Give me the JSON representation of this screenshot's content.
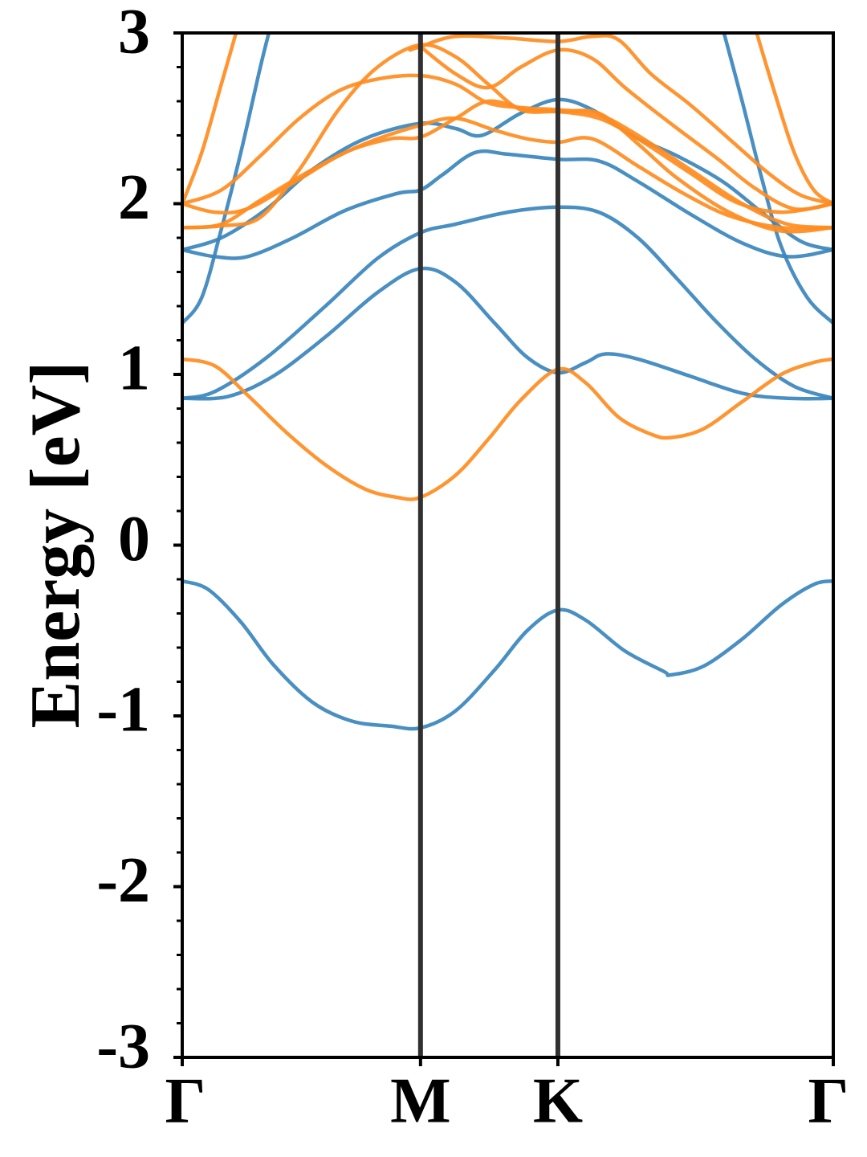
{
  "chart_data": {
    "type": "line",
    "title": "",
    "xlabel": "",
    "ylabel": "Energy [eV]",
    "ylim": [
      -3,
      3
    ],
    "x_ticks": [
      {
        "label": "Γ",
        "k": 0.0
      },
      {
        "label": "M",
        "k": 0.366
      },
      {
        "label": "K",
        "k": 0.577
      },
      {
        "label": "Γ",
        "k": 1.0
      }
    ],
    "y_ticks": [
      {
        "label": "-3",
        "value": -3
      },
      {
        "label": "-2",
        "value": -2
      },
      {
        "label": "-1",
        "value": -1
      },
      {
        "label": "0",
        "value": 0
      },
      {
        "label": "1",
        "value": 1
      },
      {
        "label": "2",
        "value": 2
      },
      {
        "label": "3",
        "value": 3
      }
    ],
    "y_minor_step": 0.2,
    "vlines_k": [
      0.366,
      0.577
    ],
    "colors": {
      "blue": "#3a86bd",
      "orange": "#ff8c1f",
      "vline": "#303030",
      "axis": "#000000"
    },
    "series": [
      {
        "name": "blue-band-1",
        "color": "blue",
        "points": [
          [
            0,
            -0.21
          ],
          [
            0.04,
            -0.26
          ],
          [
            0.09,
            -0.45
          ],
          [
            0.14,
            -0.7
          ],
          [
            0.2,
            -0.92
          ],
          [
            0.26,
            -1.03
          ],
          [
            0.32,
            -1.06
          ],
          [
            0.366,
            -1.07
          ],
          [
            0.42,
            -0.97
          ],
          [
            0.48,
            -0.73
          ],
          [
            0.53,
            -0.5
          ],
          [
            0.577,
            -0.38
          ],
          [
            0.62,
            -0.44
          ],
          [
            0.68,
            -0.62
          ],
          [
            0.74,
            -0.74
          ],
          [
            0.75,
            -0.76
          ],
          [
            0.8,
            -0.71
          ],
          [
            0.86,
            -0.55
          ],
          [
            0.92,
            -0.35
          ],
          [
            0.97,
            -0.23
          ],
          [
            1.0,
            -0.21
          ]
        ]
      },
      {
        "name": "blue-band-2",
        "color": "blue",
        "points": [
          [
            0,
            0.86
          ],
          [
            0.07,
            0.87
          ],
          [
            0.14,
            0.99
          ],
          [
            0.22,
            1.22
          ],
          [
            0.3,
            1.48
          ],
          [
            0.366,
            1.62
          ],
          [
            0.42,
            1.54
          ],
          [
            0.48,
            1.3
          ],
          [
            0.53,
            1.1
          ],
          [
            0.577,
            1.01
          ],
          [
            0.62,
            1.07
          ],
          [
            0.65,
            1.12
          ],
          [
            0.7,
            1.09
          ],
          [
            0.78,
            0.99
          ],
          [
            0.86,
            0.89
          ],
          [
            0.93,
            0.86
          ],
          [
            1.0,
            0.86
          ]
        ]
      },
      {
        "name": "blue-band-3",
        "color": "blue",
        "points": [
          [
            0,
            0.86
          ],
          [
            0.05,
            0.9
          ],
          [
            0.13,
            1.1
          ],
          [
            0.22,
            1.4
          ],
          [
            0.3,
            1.68
          ],
          [
            0.366,
            1.83
          ],
          [
            0.42,
            1.88
          ],
          [
            0.5,
            1.95
          ],
          [
            0.577,
            1.98
          ],
          [
            0.64,
            1.95
          ],
          [
            0.7,
            1.8
          ],
          [
            0.76,
            1.56
          ],
          [
            0.82,
            1.31
          ],
          [
            0.88,
            1.09
          ],
          [
            0.94,
            0.93
          ],
          [
            1.0,
            0.86
          ]
        ]
      },
      {
        "name": "blue-band-4",
        "color": "blue",
        "points": [
          [
            0,
            1.73
          ],
          [
            0.05,
            1.69
          ],
          [
            0.1,
            1.69
          ],
          [
            0.17,
            1.8
          ],
          [
            0.25,
            1.96
          ],
          [
            0.33,
            2.06
          ],
          [
            0.366,
            2.08
          ],
          [
            0.4,
            2.17
          ],
          [
            0.45,
            2.3
          ],
          [
            0.5,
            2.29
          ],
          [
            0.577,
            2.26
          ],
          [
            0.64,
            2.25
          ],
          [
            0.7,
            2.13
          ],
          [
            0.78,
            1.94
          ],
          [
            0.86,
            1.77
          ],
          [
            0.93,
            1.69
          ],
          [
            1.0,
            1.73
          ]
        ]
      },
      {
        "name": "blue-band-5",
        "color": "blue",
        "points": [
          [
            0,
            1.73
          ],
          [
            0.06,
            1.8
          ],
          [
            0.13,
            1.97
          ],
          [
            0.2,
            2.2
          ],
          [
            0.28,
            2.38
          ],
          [
            0.366,
            2.47
          ],
          [
            0.42,
            2.44
          ],
          [
            0.46,
            2.4
          ],
          [
            0.52,
            2.53
          ],
          [
            0.577,
            2.61
          ],
          [
            0.63,
            2.55
          ],
          [
            0.69,
            2.4
          ],
          [
            0.76,
            2.28
          ],
          [
            0.83,
            2.13
          ],
          [
            0.89,
            1.95
          ],
          [
            0.95,
            1.78
          ],
          [
            1.0,
            1.73
          ]
        ]
      },
      {
        "name": "blue-band-6",
        "color": "blue",
        "points": [
          [
            0,
            1.3
          ],
          [
            0.03,
            1.45
          ],
          [
            0.06,
            1.85
          ],
          [
            0.09,
            2.3
          ],
          [
            0.12,
            2.8
          ],
          [
            0.135,
            3.03
          ]
        ]
      },
      {
        "name": "blue-band-7",
        "color": "blue",
        "points": [
          [
            0.83,
            3.03
          ],
          [
            0.86,
            2.6
          ],
          [
            0.89,
            2.15
          ],
          [
            0.92,
            1.75
          ],
          [
            0.96,
            1.45
          ],
          [
            1.0,
            1.3
          ]
        ]
      },
      {
        "name": "orange-band-1",
        "color": "orange",
        "points": [
          [
            0,
            1.09
          ],
          [
            0.05,
            1.05
          ],
          [
            0.1,
            0.88
          ],
          [
            0.16,
            0.66
          ],
          [
            0.22,
            0.47
          ],
          [
            0.28,
            0.33
          ],
          [
            0.33,
            0.28
          ],
          [
            0.366,
            0.28
          ],
          [
            0.42,
            0.41
          ],
          [
            0.47,
            0.62
          ],
          [
            0.52,
            0.85
          ],
          [
            0.577,
            1.03
          ],
          [
            0.62,
            0.95
          ],
          [
            0.67,
            0.75
          ],
          [
            0.72,
            0.65
          ],
          [
            0.75,
            0.63
          ],
          [
            0.8,
            0.68
          ],
          [
            0.86,
            0.84
          ],
          [
            0.92,
            1.0
          ],
          [
            0.97,
            1.07
          ],
          [
            1.0,
            1.09
          ]
        ]
      },
      {
        "name": "orange-band-2",
        "color": "orange",
        "points": [
          [
            0,
            2.0
          ],
          [
            0.05,
            1.95
          ],
          [
            0.1,
            1.97
          ],
          [
            0.17,
            2.12
          ],
          [
            0.25,
            2.3
          ],
          [
            0.32,
            2.38
          ],
          [
            0.366,
            2.39
          ],
          [
            0.42,
            2.5
          ],
          [
            0.47,
            2.6
          ],
          [
            0.53,
            2.55
          ],
          [
            0.577,
            2.54
          ],
          [
            0.64,
            2.5
          ],
          [
            0.7,
            2.38
          ],
          [
            0.78,
            2.18
          ],
          [
            0.85,
            2.01
          ],
          [
            0.92,
            1.95
          ],
          [
            1.0,
            2.0
          ]
        ]
      },
      {
        "name": "orange-band-3",
        "color": "orange",
        "points": [
          [
            0,
            1.86
          ],
          [
            0.06,
            1.88
          ],
          [
            0.12,
            2.02
          ],
          [
            0.2,
            2.2
          ],
          [
            0.28,
            2.35
          ],
          [
            0.366,
            2.46
          ],
          [
            0.42,
            2.5
          ],
          [
            0.48,
            2.43
          ],
          [
            0.53,
            2.38
          ],
          [
            0.577,
            2.36
          ],
          [
            0.63,
            2.38
          ],
          [
            0.7,
            2.22
          ],
          [
            0.77,
            2.06
          ],
          [
            0.84,
            1.93
          ],
          [
            0.92,
            1.86
          ],
          [
            1.0,
            1.86
          ]
        ]
      },
      {
        "name": "orange-band-4",
        "color": "orange",
        "points": [
          [
            0,
            2.0
          ],
          [
            0.06,
            2.08
          ],
          [
            0.12,
            2.28
          ],
          [
            0.18,
            2.5
          ],
          [
            0.24,
            2.66
          ],
          [
            0.3,
            2.73
          ],
          [
            0.366,
            2.75
          ],
          [
            0.42,
            2.7
          ],
          [
            0.47,
            2.59
          ],
          [
            0.53,
            2.56
          ],
          [
            0.577,
            2.55
          ],
          [
            0.64,
            2.52
          ],
          [
            0.7,
            2.4
          ],
          [
            0.78,
            2.2
          ],
          [
            0.86,
            2.0
          ],
          [
            0.93,
            1.88
          ],
          [
            1.0,
            1.86
          ]
        ]
      },
      {
        "name": "orange-band-5",
        "color": "orange",
        "points": [
          [
            0,
            1.86
          ],
          [
            0.06,
            1.87
          ],
          [
            0.12,
            1.92
          ],
          [
            0.18,
            2.2
          ],
          [
            0.24,
            2.55
          ],
          [
            0.3,
            2.8
          ],
          [
            0.366,
            2.93
          ],
          [
            0.42,
            2.86
          ],
          [
            0.47,
            2.7
          ],
          [
            0.52,
            2.55
          ],
          [
            0.577,
            2.54
          ],
          [
            0.64,
            2.53
          ],
          [
            0.7,
            2.35
          ],
          [
            0.76,
            2.15
          ],
          [
            0.84,
            1.95
          ],
          [
            0.92,
            1.84
          ],
          [
            1.0,
            1.86
          ]
        ]
      },
      {
        "name": "orange-band-6",
        "color": "orange",
        "points": [
          [
            0,
            2.0
          ],
          [
            0.03,
            2.3
          ],
          [
            0.06,
            2.7
          ],
          [
            0.085,
            3.03
          ]
        ]
      },
      {
        "name": "orange-band-7",
        "color": "orange",
        "points": [
          [
            0.35,
            2.9
          ],
          [
            0.366,
            2.92
          ],
          [
            0.42,
            2.98
          ],
          [
            0.5,
            2.97
          ],
          [
            0.577,
            2.95
          ],
          [
            0.63,
            2.98
          ],
          [
            0.67,
            2.96
          ],
          [
            0.72,
            2.76
          ],
          [
            0.78,
            2.58
          ],
          [
            0.84,
            2.38
          ],
          [
            0.9,
            2.18
          ],
          [
            0.95,
            2.05
          ],
          [
            1.0,
            2.0
          ]
        ]
      },
      {
        "name": "orange-band-8",
        "color": "orange",
        "points": [
          [
            0.366,
            2.92
          ],
          [
            0.42,
            2.76
          ],
          [
            0.47,
            2.68
          ],
          [
            0.52,
            2.8
          ],
          [
            0.577,
            2.9
          ],
          [
            0.63,
            2.85
          ],
          [
            0.68,
            2.68
          ],
          [
            0.75,
            2.47
          ],
          [
            0.82,
            2.27
          ],
          [
            0.88,
            2.09
          ],
          [
            0.94,
            1.97
          ],
          [
            1.0,
            2.0
          ]
        ]
      },
      {
        "name": "orange-band-9",
        "color": "orange",
        "points": [
          [
            0.88,
            3.03
          ],
          [
            0.91,
            2.65
          ],
          [
            0.94,
            2.3
          ],
          [
            0.97,
            2.08
          ],
          [
            1.0,
            2.0
          ]
        ]
      }
    ]
  }
}
